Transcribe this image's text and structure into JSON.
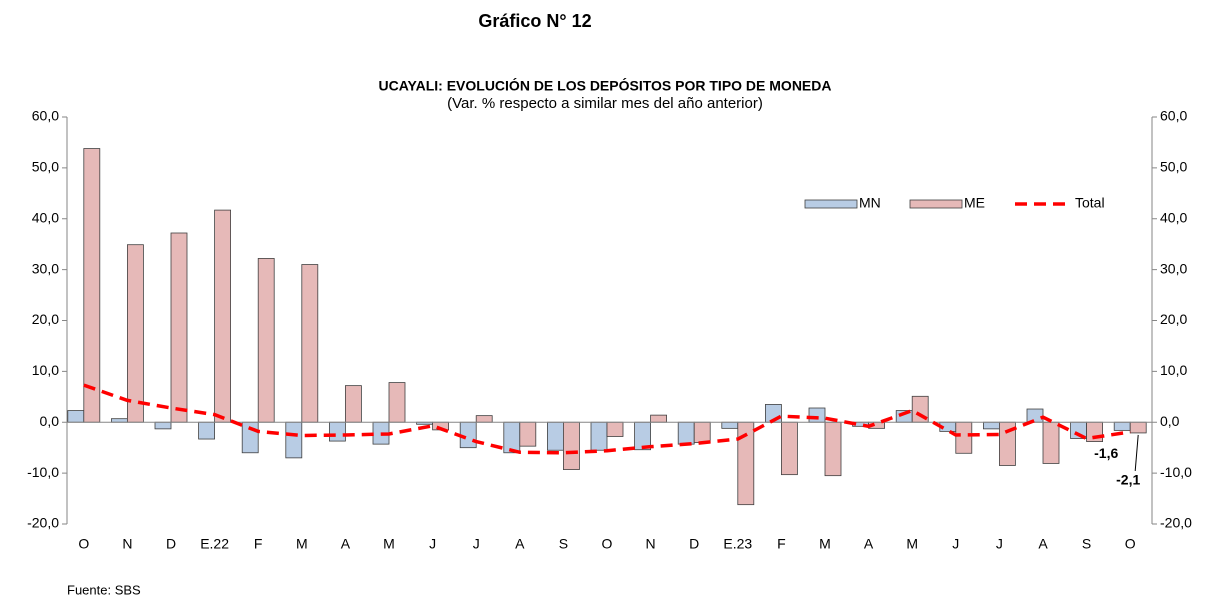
{
  "chart_data": {
    "type": "bar",
    "heading": "Gráfico N° 12",
    "title": "UCAYALI: EVOLUCIÓN DE LOS DEPÓSITOS POR TIPO DE MONEDA",
    "subtitle": "(Var. % respecto a similar mes del año anterior)",
    "source": "Fuente: SBS",
    "categories": [
      "O",
      "N",
      "D",
      "E.22",
      "F",
      "M",
      "A",
      "M",
      "J",
      "J",
      "A",
      "S",
      "O",
      "N",
      "D",
      "E.23",
      "F",
      "M",
      "A",
      "M",
      "J",
      "J",
      "A",
      "S",
      "O"
    ],
    "series": [
      {
        "name": "MN",
        "type": "bar",
        "color": "#b8cce4",
        "values": [
          2.3,
          0.7,
          -1.3,
          -3.3,
          -6.0,
          -7.0,
          -3.7,
          -4.3,
          -0.4,
          -5.0,
          -6.0,
          -5.5,
          -5.5,
          -5.4,
          -4.3,
          -1.2,
          3.5,
          2.8,
          -0.8,
          2.3,
          -1.8,
          -1.3,
          2.6,
          -3.2,
          -1.6
        ],
        "value_labels": [
          null,
          null,
          null,
          null,
          null,
          null,
          null,
          null,
          null,
          null,
          null,
          null,
          null,
          null,
          null,
          null,
          null,
          null,
          null,
          null,
          null,
          null,
          null,
          null,
          "-1,6"
        ]
      },
      {
        "name": "ME",
        "type": "bar",
        "color": "#e6b9b8",
        "values": [
          53.8,
          34.9,
          37.2,
          41.7,
          32.2,
          31.0,
          7.2,
          7.8,
          -1.5,
          1.3,
          -4.7,
          -9.3,
          -2.8,
          1.4,
          -4.0,
          -16.2,
          -10.3,
          -10.5,
          -1.2,
          5.1,
          -6.1,
          -8.5,
          -8.1,
          -3.8,
          -2.1
        ],
        "value_labels": [
          null,
          null,
          null,
          null,
          null,
          null,
          null,
          null,
          null,
          null,
          null,
          null,
          null,
          null,
          null,
          null,
          null,
          null,
          null,
          null,
          null,
          null,
          null,
          null,
          "-2,1"
        ]
      },
      {
        "name": "Total",
        "type": "line",
        "color": "#ff0000",
        "values": [
          7.3,
          4.3,
          2.8,
          1.5,
          -1.8,
          -2.6,
          -2.5,
          -2.3,
          -0.7,
          -3.8,
          -5.9,
          -6.0,
          -5.6,
          -4.8,
          -4.2,
          -3.3,
          1.2,
          0.8,
          -0.8,
          2.3,
          -2.5,
          -2.4,
          1.0,
          -3.2,
          -1.9
        ]
      }
    ],
    "ylim": [
      -20,
      60
    ],
    "yticks": [
      {
        "value": -20,
        "label": "-20,0"
      },
      {
        "value": -10,
        "label": "-10,0"
      },
      {
        "value": 0,
        "label": "0,0"
      },
      {
        "value": 10,
        "label": "10,0"
      },
      {
        "value": 20,
        "label": "20,0"
      },
      {
        "value": 30,
        "label": "30,0"
      },
      {
        "value": 40,
        "label": "40,0"
      },
      {
        "value": 50,
        "label": "50,0"
      },
      {
        "value": 60,
        "label": "60,0"
      }
    ],
    "y2lim": [
      -20,
      60
    ],
    "y2ticks": [
      {
        "value": -20,
        "label": "-20,0"
      },
      {
        "value": -10,
        "label": "-10,0"
      },
      {
        "value": 0,
        "label": "0,0"
      },
      {
        "value": 10,
        "label": "10,0"
      },
      {
        "value": 20,
        "label": "20,0"
      },
      {
        "value": 30,
        "label": "30,0"
      },
      {
        "value": 40,
        "label": "40,0"
      },
      {
        "value": 50,
        "label": "50,0"
      },
      {
        "value": 60,
        "label": "60,0"
      }
    ],
    "grid": false,
    "legend": "upper-right"
  }
}
